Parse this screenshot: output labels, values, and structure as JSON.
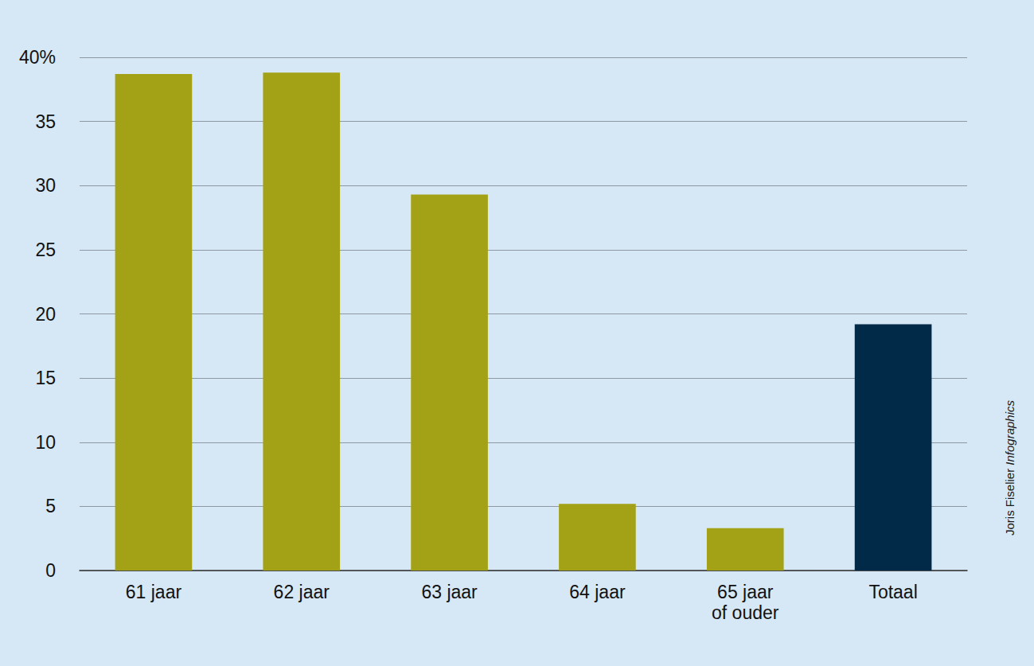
{
  "chart_data": {
    "type": "bar",
    "categories": [
      "61 jaar",
      "62 jaar",
      "63 jaar",
      "64 jaar",
      "65 jaar\nof ouder",
      "Totaal"
    ],
    "values": [
      38.7,
      38.8,
      29.3,
      5.2,
      3.3,
      19.2
    ],
    "colors": [
      "#a3a115",
      "#a3a115",
      "#a3a115",
      "#a3a115",
      "#a3a115",
      "#002a48"
    ],
    "ylim": [
      0,
      40
    ],
    "yticks": [
      0,
      5,
      10,
      15,
      20,
      25,
      30,
      35,
      {
        "value": 40,
        "label": "40%"
      }
    ],
    "grid": true,
    "credit": [
      "Joris Fiselier",
      "Infographics"
    ]
  }
}
